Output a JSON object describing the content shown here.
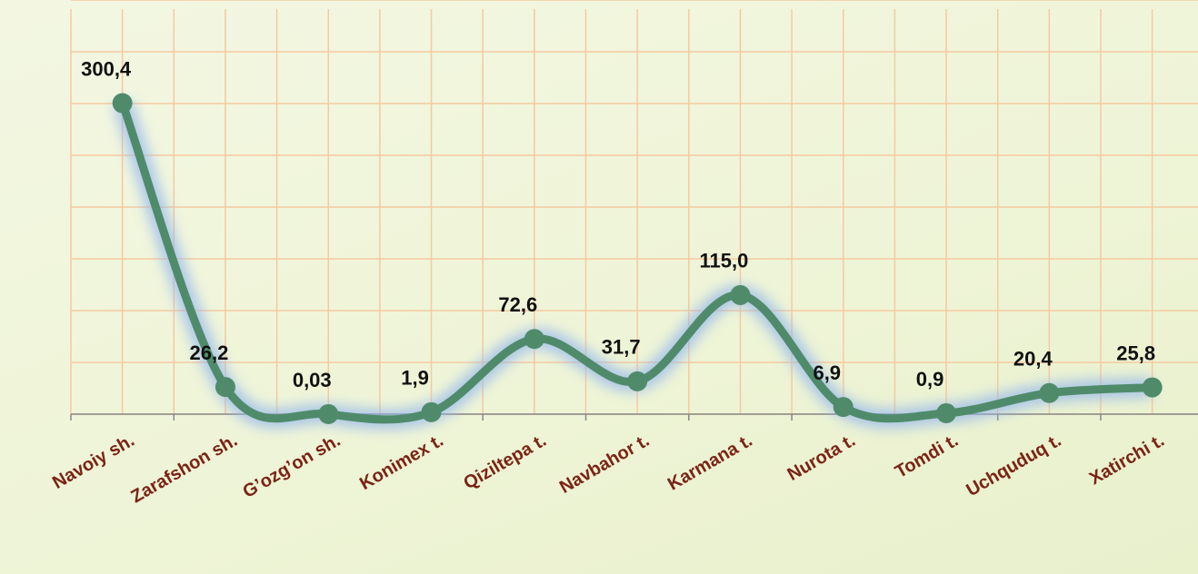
{
  "chart_data": {
    "type": "line",
    "categories": [
      "Navoiy sh.",
      "Zarafshon sh.",
      "G’ozg’on sh.",
      "Konimex t.",
      "Qiziltepa t.",
      "Navbahor t.",
      "Karmana t.",
      "Nurota t.",
      "Tomdi t.",
      "Uchquduq t.",
      "Xatirchi t."
    ],
    "values": [
      300.4,
      26.2,
      0.03,
      1.9,
      72.6,
      31.7,
      115.0,
      6.9,
      0.9,
      20.4,
      25.8
    ],
    "value_labels": [
      "300,4",
      "26,2",
      "0,03",
      "1,9",
      "72,6",
      "31,7",
      "115,0",
      "6,9",
      "0,9",
      "20,4",
      "25,8"
    ],
    "color": "#4f8b6b",
    "ylim": [
      0,
      400
    ],
    "yticks": [
      0,
      50,
      100,
      150,
      200,
      250,
      300,
      350,
      400
    ],
    "grid": true
  }
}
